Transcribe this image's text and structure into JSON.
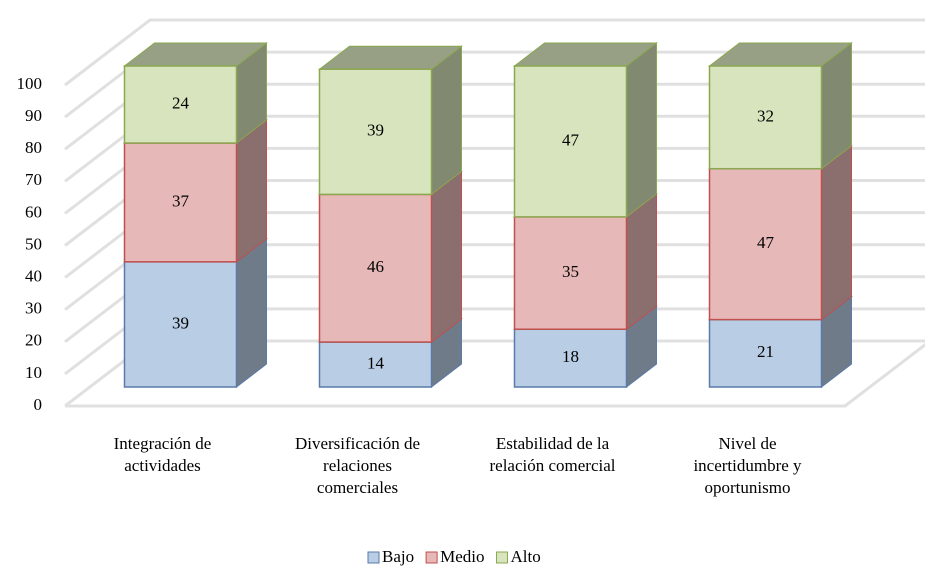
{
  "chart_data": {
    "type": "bar",
    "stacked": true,
    "three_d": true,
    "categories": [
      "Integración de actividades",
      "Diversificación de relaciones comerciales",
      "Estabilidad de la relación comercial",
      "Nivel de incertidumbre y oportunismo"
    ],
    "series": [
      {
        "name": "Bajo",
        "color": "#b9cde5",
        "values": [
          39,
          14,
          18,
          21
        ]
      },
      {
        "name": "Medio",
        "color": "#e6b9b8",
        "values": [
          37,
          46,
          35,
          47
        ]
      },
      {
        "name": "Alto",
        "color": "#d7e4bd",
        "values": [
          24,
          39,
          47,
          32
        ]
      }
    ],
    "ylim": [
      0,
      100
    ],
    "yticks": [
      0,
      10,
      20,
      30,
      40,
      50,
      60,
      70,
      80,
      90,
      100
    ],
    "grid": true,
    "legend": "bottom"
  }
}
